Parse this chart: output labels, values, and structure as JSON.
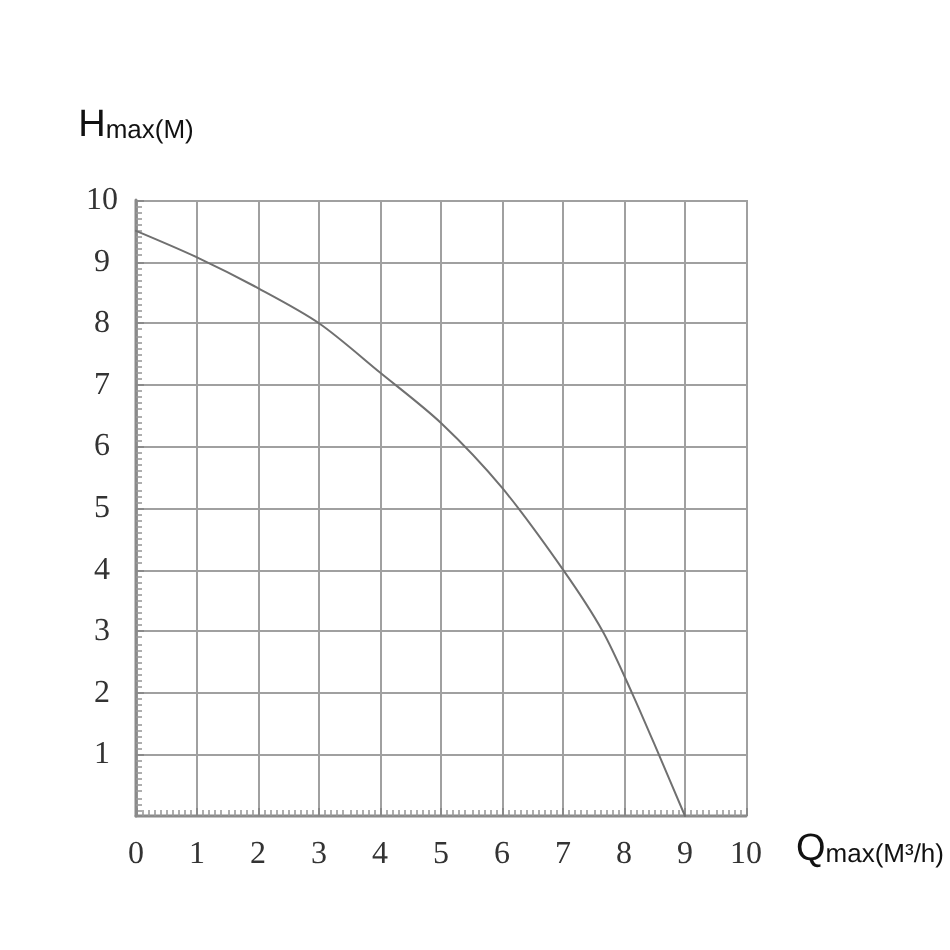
{
  "chart_data": {
    "type": "line",
    "xlabel": "Qmax(M³/h)",
    "ylabel": "Hmax(M)",
    "series": [
      {
        "color": "#707070",
        "x": [
          0,
          1,
          2,
          3,
          4,
          5,
          6,
          7,
          7.65,
          8.13,
          8.57,
          9
        ],
        "values": [
          9.5,
          9.07,
          8.57,
          8.0,
          7.2,
          6.38,
          5.33,
          4.0,
          3.0,
          2.0,
          1.0,
          0
        ]
      }
    ],
    "xlim": [
      0,
      10
    ],
    "xticks": [
      0,
      1,
      2,
      3,
      4,
      5,
      6,
      7,
      8,
      9,
      10
    ],
    "ylim": [
      0,
      10
    ],
    "yticks": [
      1,
      2,
      3,
      4,
      5,
      6,
      7,
      8,
      9,
      10
    ],
    "grid": true,
    "marker": "none",
    "line_style": "solid"
  }
}
